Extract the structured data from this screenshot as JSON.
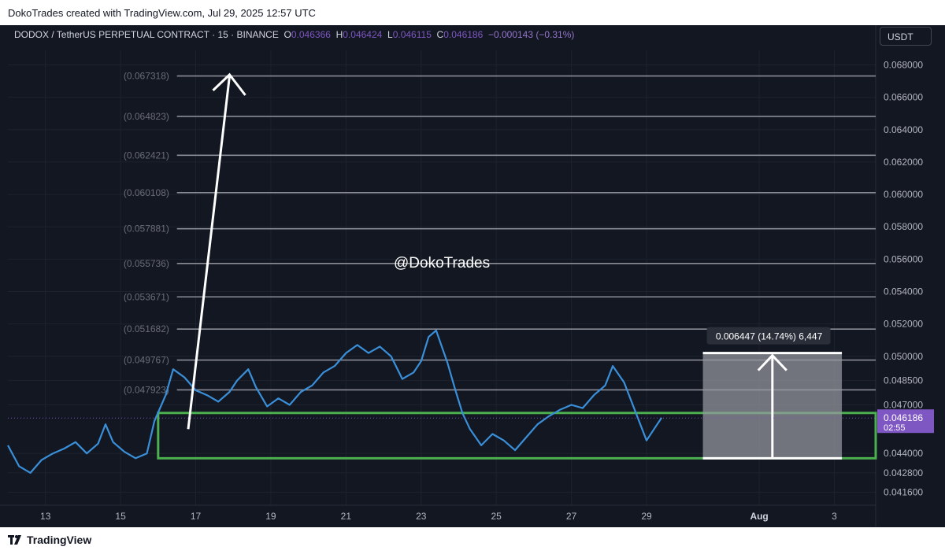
{
  "header": {
    "caption": "DokoTrades created with TradingView.com, Jul 29, 2025 12:57 UTC"
  },
  "legend": {
    "symbol": "DODOX / TetherUS PERPETUAL CONTRACT · 15 · BINANCE",
    "o_label": "O",
    "o_value": "0.046366",
    "h_label": "H",
    "h_value": "0.046424",
    "l_label": "L",
    "l_value": "0.046115",
    "c_label": "C",
    "c_value": "0.046186",
    "change": "−0.000143 (−0.31%)"
  },
  "currency_button": "USDT",
  "watermark": "@DokoTrades",
  "footer": {
    "brand": "TradingView"
  },
  "colors": {
    "background": "#131722",
    "price_line": "#3a8fd9",
    "support_box": "#4caf50",
    "price_badge": "#7e57c2",
    "measure_box": "#9598a1",
    "level_line": "#8a8d95"
  },
  "chart_data": {
    "type": "line",
    "y_axis": {
      "ylim": [
        0.0408,
        0.0689
      ],
      "tick_labels": [
        "0.068000",
        "0.066000",
        "0.064000",
        "0.062000",
        "0.060000",
        "0.058000",
        "0.056000",
        "0.054000",
        "0.052000",
        "0.050000",
        "0.048500",
        "0.047000",
        "0.044000",
        "0.042800",
        "0.041600"
      ],
      "tick_values": [
        0.068,
        0.066,
        0.064,
        0.062,
        0.06,
        0.058,
        0.056,
        0.054,
        0.052,
        0.05,
        0.0485,
        0.047,
        0.044,
        0.0428,
        0.0416
      ]
    },
    "x_axis": {
      "tick_labels": [
        "13",
        "15",
        "17",
        "19",
        "21",
        "23",
        "25",
        "27",
        "29",
        "Aug",
        "3"
      ],
      "tick_days": [
        13,
        15,
        17,
        19,
        21,
        23,
        25,
        27,
        29,
        32,
        34
      ],
      "xlim": [
        12.0,
        35.1
      ]
    },
    "levels": [
      {
        "label": "(0.067318)",
        "value": 0.067318
      },
      {
        "label": "(0.064823)",
        "value": 0.064823
      },
      {
        "label": "(0.062421)",
        "value": 0.062421
      },
      {
        "label": "(0.060108)",
        "value": 0.060108
      },
      {
        "label": "(0.057881)",
        "value": 0.057881
      },
      {
        "label": "(0.055736)",
        "value": 0.055736
      },
      {
        "label": "(0.053671)",
        "value": 0.053671
      },
      {
        "label": "(0.051682)",
        "value": 0.051682
      },
      {
        "label": "(0.049767)",
        "value": 0.049767
      },
      {
        "label": "(0.047923)",
        "value": 0.047923
      }
    ],
    "support_zone": {
      "x_start": 16.0,
      "x_end": 35.1,
      "top": 0.0465,
      "bottom": 0.0437
    },
    "measure": {
      "x_start": 30.5,
      "x_end": 34.2,
      "from": 0.0437,
      "to": 0.0502,
      "label": "0.006447 (14.74%) 6,447"
    },
    "big_arrow": {
      "from_x": 16.8,
      "from_y": 0.0455,
      "to_x": 17.9,
      "to_y": 0.0674
    },
    "current_price": {
      "label": "0.046186",
      "value": 0.046186,
      "countdown": "02:55"
    },
    "series": [
      {
        "x": [
          12.0,
          12.3,
          12.6,
          12.9,
          13.2,
          13.5,
          13.8,
          14.1,
          14.4,
          14.6,
          14.8,
          15.1,
          15.4,
          15.7,
          15.9,
          16.2,
          16.4,
          16.7,
          17.0,
          17.3,
          17.6,
          17.9,
          18.1,
          18.4,
          18.6,
          18.9,
          19.2,
          19.5,
          19.8,
          20.1,
          20.4,
          20.7,
          21.0,
          21.3,
          21.6,
          21.9,
          22.2,
          22.5,
          22.8,
          23.0,
          23.2,
          23.4,
          23.7,
          23.9,
          24.1,
          24.3,
          24.6,
          24.9,
          25.2,
          25.5,
          25.8,
          26.1,
          26.4,
          26.7,
          27.0,
          27.3,
          27.6,
          27.9,
          28.1,
          28.4,
          28.7,
          29.0,
          29.2,
          29.4
        ],
        "y": [
          0.0445,
          0.0432,
          0.0428,
          0.0436,
          0.044,
          0.0443,
          0.0447,
          0.044,
          0.0446,
          0.0458,
          0.0447,
          0.0441,
          0.0437,
          0.044,
          0.046,
          0.0476,
          0.0492,
          0.0487,
          0.0479,
          0.0476,
          0.0472,
          0.0478,
          0.0485,
          0.0492,
          0.0481,
          0.0469,
          0.0474,
          0.047,
          0.0478,
          0.0482,
          0.049,
          0.0494,
          0.0502,
          0.0507,
          0.0502,
          0.0506,
          0.05,
          0.0486,
          0.049,
          0.0497,
          0.0512,
          0.0516,
          0.0496,
          0.048,
          0.0465,
          0.0455,
          0.0445,
          0.0452,
          0.0448,
          0.0442,
          0.045,
          0.0458,
          0.0463,
          0.0467,
          0.047,
          0.0468,
          0.0476,
          0.0482,
          0.0494,
          0.0484,
          0.0466,
          0.0448,
          0.0455,
          0.0462
        ]
      }
    ]
  }
}
